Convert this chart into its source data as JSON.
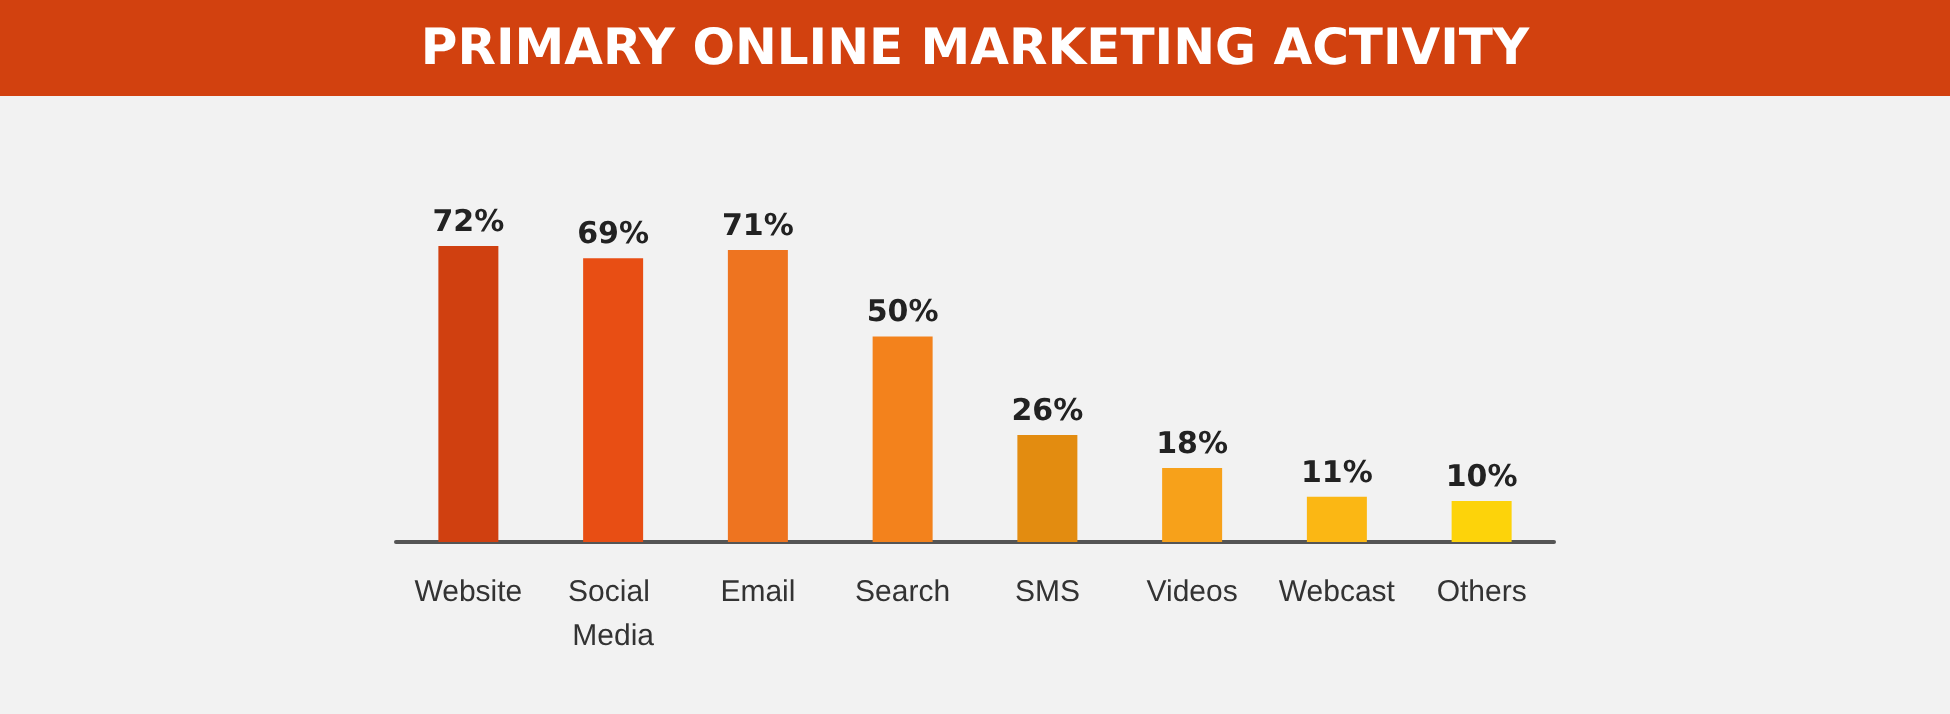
{
  "chart_data": {
    "type": "bar",
    "title": "PRIMARY ONLINE MARKETING ACTIVITY",
    "categories": [
      "Website",
      "Social Media",
      "Email",
      "Search",
      "SMS",
      "Videos",
      "Webcast",
      "Others"
    ],
    "values": [
      72,
      69,
      71,
      50,
      26,
      18,
      11,
      10
    ],
    "value_labels": [
      "72%",
      "69%",
      "71%",
      "50%",
      "26%",
      "18%",
      "11%",
      "10%"
    ],
    "colors": [
      "#d04010",
      "#e84e14",
      "#ee7420",
      "#f3821c",
      "#e38c10",
      "#f7a11a",
      "#fbb714",
      "#fdd30a"
    ]
  }
}
